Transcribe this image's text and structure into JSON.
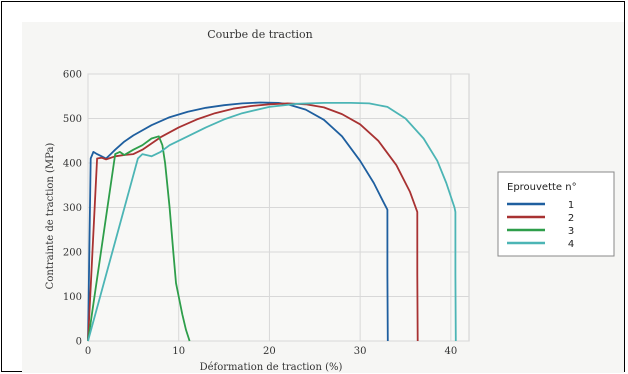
{
  "chart_data": {
    "type": "line",
    "title": "Courbe de traction",
    "xlabel": "Déformation de traction (%)",
    "ylabel": "Contrainte de traction (MPa)",
    "xlim": [
      0,
      42
    ],
    "ylim": [
      0,
      600
    ],
    "xticks": [
      0,
      10,
      20,
      30,
      40
    ],
    "yticks": [
      0,
      100,
      200,
      300,
      400,
      500,
      600
    ],
    "grid": true,
    "legend": {
      "title": "Eprouvette n°",
      "placement": "right"
    },
    "series": [
      {
        "name": "1",
        "color": "#1f5f9f",
        "x": [
          0,
          0.3,
          0.6,
          1.0,
          1.5,
          2.0,
          2.5,
          3,
          4,
          5,
          7,
          9,
          11,
          13,
          15,
          17,
          19,
          21,
          22,
          24,
          26,
          28,
          30,
          31.5,
          32.5,
          33,
          33,
          33.05
        ],
        "y": [
          0,
          410,
          425,
          420,
          415,
          410,
          420,
          430,
          448,
          462,
          485,
          503,
          515,
          524,
          530,
          534,
          536,
          535,
          532,
          520,
          497,
          460,
          405,
          355,
          315,
          295,
          150,
          0
        ]
      },
      {
        "name": "2",
        "color": "#a83232",
        "x": [
          0,
          1.0,
          1.5,
          2.0,
          3,
          4,
          5,
          6,
          8,
          10,
          12,
          14,
          16,
          18,
          20,
          22,
          24,
          26,
          28,
          30,
          32,
          34,
          35.5,
          36.3,
          36.3,
          36.35
        ],
        "y": [
          0,
          410,
          412,
          408,
          415,
          418,
          420,
          430,
          458,
          480,
          498,
          512,
          522,
          528,
          532,
          534,
          532,
          525,
          510,
          487,
          450,
          395,
          335,
          290,
          150,
          0
        ]
      },
      {
        "name": "3",
        "color": "#2e9e4a",
        "x": [
          0,
          3,
          3.5,
          4,
          5,
          6,
          7,
          7.8,
          8.2,
          8.5,
          9,
          9.4,
          9.7,
          10,
          10.4,
          10.8,
          11.2
        ],
        "y": [
          0,
          420,
          425,
          418,
          430,
          440,
          455,
          460,
          440,
          400,
          300,
          200,
          130,
          100,
          60,
          25,
          0
        ]
      },
      {
        "name": "4",
        "color": "#4cb5b5",
        "x": [
          0,
          5.5,
          6,
          7,
          8,
          9,
          11,
          13,
          15,
          17,
          20,
          23,
          26,
          29,
          31,
          33,
          35,
          37,
          38.5,
          39.5,
          40.4,
          40.5,
          40.5,
          40.55
        ],
        "y": [
          0,
          410,
          420,
          415,
          425,
          440,
          460,
          480,
          498,
          512,
          526,
          533,
          535,
          535,
          534,
          526,
          500,
          455,
          405,
          355,
          300,
          290,
          150,
          0
        ]
      }
    ]
  }
}
